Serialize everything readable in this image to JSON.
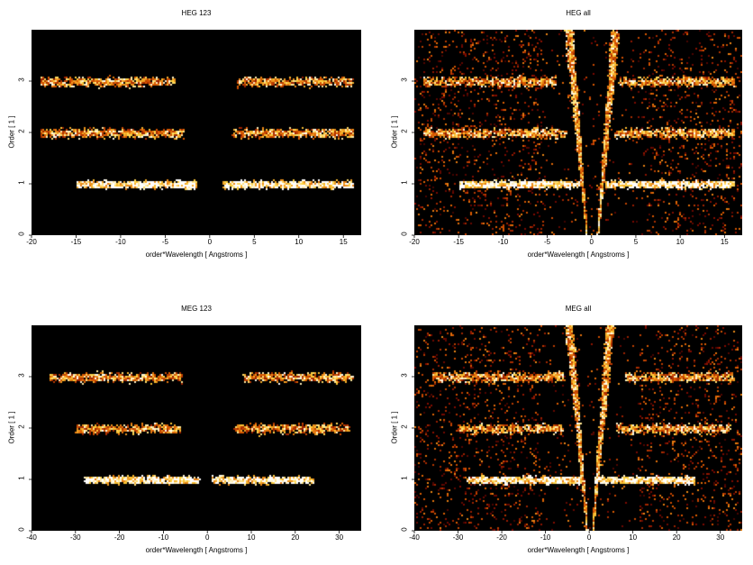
{
  "chart_data": [
    {
      "type": "heatmap",
      "title": "HEG 123",
      "xlabel": "order*Wavelength [ Angstroms ]",
      "ylabel": "Order [ 1 ]",
      "xlim": [
        -20,
        17
      ],
      "ylim": [
        0,
        4
      ],
      "xticks": [
        -20,
        -15,
        -10,
        -5,
        0,
        5,
        10,
        15
      ],
      "yticks": [
        0,
        1,
        2,
        3
      ],
      "bands": [
        {
          "order": 1,
          "x_ranges": [
            [
              -15,
              -1.5
            ],
            [
              1.5,
              16
            ]
          ]
        },
        {
          "order": 2,
          "x_ranges": [
            [
              -19,
              -3
            ],
            [
              2.5,
              16
            ]
          ]
        },
        {
          "order": 3,
          "x_ranges": [
            [
              -19,
              -4
            ],
            [
              3,
              16
            ]
          ]
        }
      ],
      "diagonal_streaks": false
    },
    {
      "type": "heatmap",
      "title": "HEG all",
      "xlabel": "order*Wavelength [ Angstroms ]",
      "ylabel": "Order [ 1 ]",
      "xlim": [
        -20,
        17
      ],
      "ylim": [
        0,
        4
      ],
      "xticks": [
        -20,
        -15,
        -10,
        -5,
        0,
        5,
        10,
        15
      ],
      "yticks": [
        0,
        1,
        2,
        3
      ],
      "bands": [
        {
          "order": 1,
          "x_ranges": [
            [
              -15,
              -1.5
            ],
            [
              1.5,
              16
            ]
          ]
        },
        {
          "order": 2,
          "x_ranges": [
            [
              -19,
              -3
            ],
            [
              2.5,
              16
            ]
          ]
        },
        {
          "order": 3,
          "x_ranges": [
            [
              -19,
              -4
            ],
            [
              3,
              16
            ]
          ]
        }
      ],
      "diagonal_streaks": true
    },
    {
      "type": "heatmap",
      "title": "MEG 123",
      "xlabel": "order*Wavelength [ Angstroms ]",
      "ylabel": "Order [ 1 ]",
      "xlim": [
        -40,
        35
      ],
      "ylim": [
        0,
        4
      ],
      "xticks": [
        -40,
        -30,
        -20,
        -10,
        0,
        10,
        20,
        30
      ],
      "yticks": [
        0,
        1,
        2,
        3
      ],
      "bands": [
        {
          "order": 1,
          "x_ranges": [
            [
              -28,
              -2
            ],
            [
              1,
              24
            ]
          ]
        },
        {
          "order": 2,
          "x_ranges": [
            [
              -30,
              -6
            ],
            [
              6,
              32
            ]
          ]
        },
        {
          "order": 3,
          "x_ranges": [
            [
              -36,
              -6
            ],
            [
              8,
              33
            ]
          ]
        }
      ],
      "diagonal_streaks": false
    },
    {
      "type": "heatmap",
      "title": "MEG all",
      "xlabel": "order*Wavelength [ Angstroms ]",
      "ylabel": "Order [ 1 ]",
      "xlim": [
        -40,
        35
      ],
      "ylim": [
        0,
        4
      ],
      "xticks": [
        -40,
        -30,
        -20,
        -10,
        0,
        10,
        20,
        30
      ],
      "yticks": [
        0,
        1,
        2,
        3
      ],
      "bands": [
        {
          "order": 1,
          "x_ranges": [
            [
              -28,
              -2
            ],
            [
              1,
              24
            ]
          ]
        },
        {
          "order": 2,
          "x_ranges": [
            [
              -30,
              -6
            ],
            [
              6,
              32
            ]
          ]
        },
        {
          "order": 3,
          "x_ranges": [
            [
              -36,
              -6
            ],
            [
              8,
              33
            ]
          ]
        }
      ],
      "diagonal_streaks": true
    }
  ]
}
